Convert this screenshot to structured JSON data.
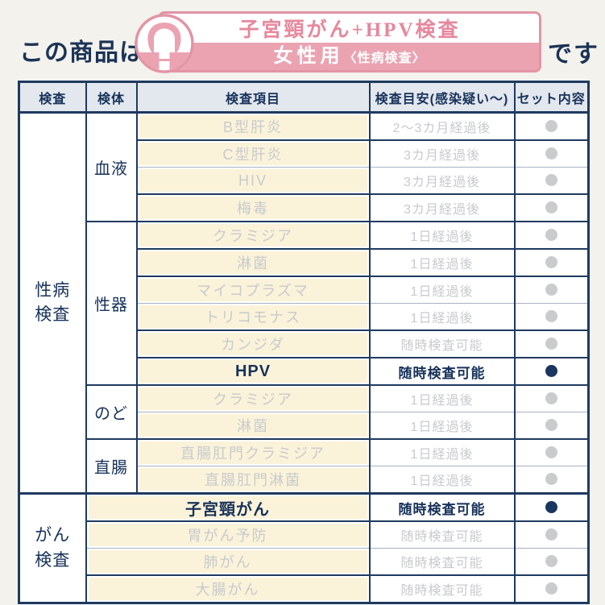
{
  "header": {
    "prefix": "この商品は",
    "suffix": "です",
    "badge": {
      "title": "子宮頸がん+HPV検査",
      "subtitle_main": "女性用",
      "subtitle_sub": "〈性病検査〉",
      "icon": "woman-avatar-icon"
    }
  },
  "colors": {
    "navy": "#1a3560",
    "border_navy": "#1e3a5f",
    "pink_band": "#eba3b2",
    "pink_border": "#e295a5",
    "pink_text": "#e7879d",
    "cream_highlight": "#faf3d9",
    "gray_text": "#c8cacd",
    "gray_dot": "#c9cbcd",
    "included_dot": "#1a3560",
    "header_row_bg": "#e3e7ee",
    "page_bg": "#f3f2ed"
  },
  "table": {
    "headers": [
      "検査",
      "検体",
      "検査項目",
      "検査目安(感染疑い〜)",
      "セット内容"
    ],
    "sections": [
      {
        "category_lines": [
          "性病",
          "検査"
        ],
        "groups": [
          {
            "specimen": "血液",
            "rows": [
              {
                "item": "B型肝炎",
                "timing": "2〜3カ月経過後",
                "included": false
              },
              {
                "item": "C型肝炎",
                "timing": "3カ月経過後",
                "included": false
              },
              {
                "item": "HIV",
                "timing": "3カ月経過後",
                "included": false
              },
              {
                "item": "梅毒",
                "timing": "3カ月経過後",
                "included": false
              }
            ]
          },
          {
            "specimen": "性器",
            "rows": [
              {
                "item": "クラミジア",
                "timing": "1日経過後",
                "included": false
              },
              {
                "item": "淋菌",
                "timing": "1日経過後",
                "included": false
              },
              {
                "item": "マイコプラズマ",
                "timing": "1日経過後",
                "included": false
              },
              {
                "item": "トリコモナス",
                "timing": "1日経過後",
                "included": false
              },
              {
                "item": "カンジダ",
                "timing": "随時検査可能",
                "included": false
              },
              {
                "item": "HPV",
                "timing": "随時検査可能",
                "included": true
              }
            ]
          },
          {
            "specimen": "のど",
            "rows": [
              {
                "item": "クラミジア",
                "timing": "1日経過後",
                "included": false
              },
              {
                "item": "淋菌",
                "timing": "1日経過後",
                "included": false
              }
            ]
          },
          {
            "specimen": "直腸",
            "rows": [
              {
                "item": "直腸肛門クラミジア",
                "timing": "1日経過後",
                "included": false
              },
              {
                "item": "直腸肛門淋菌",
                "timing": "1日経過後",
                "included": false
              }
            ]
          }
        ]
      },
      {
        "category_lines": [
          "がん",
          "検査"
        ],
        "groups": [
          {
            "specimen": null,
            "rows": [
              {
                "item": "子宮頸がん",
                "timing": "随時検査可能",
                "included": true
              },
              {
                "item": "胃がん予防",
                "timing": "随時検査可能",
                "included": false
              },
              {
                "item": "肺がん",
                "timing": "随時検査可能",
                "included": false
              },
              {
                "item": "大腸がん",
                "timing": "随時検査可能",
                "included": false
              }
            ]
          }
        ]
      }
    ]
  }
}
